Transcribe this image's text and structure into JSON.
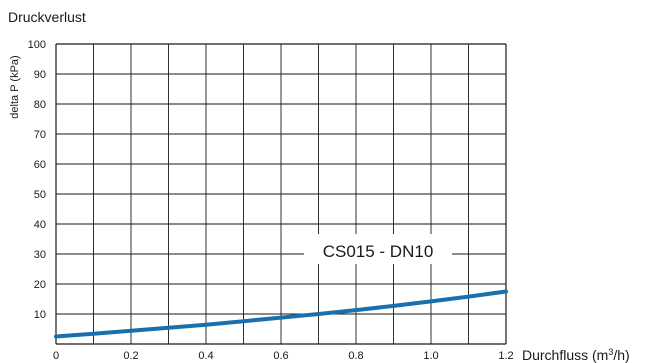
{
  "chart_data": {
    "type": "line",
    "title": "Druckverlust",
    "ylabel": "delta  P (kPa)",
    "xlabel": "Durchfluss (m³/h)",
    "xlim": [
      0,
      1.2
    ],
    "ylim": [
      0,
      100
    ],
    "grid": true,
    "x_ticks": [
      "0",
      "0.2",
      "0.4",
      "0.6",
      "0.8",
      "1.0",
      "1.2"
    ],
    "y_ticks": [
      "10",
      "20",
      "30",
      "40",
      "50",
      "60",
      "70",
      "80",
      "90",
      "100"
    ],
    "series": [
      {
        "name": "CS015 - DN10",
        "color": "#1a6fae",
        "x": [
          0,
          0.1,
          0.2,
          0.3,
          0.4,
          0.5,
          0.6,
          0.7,
          0.8,
          0.9,
          1.0,
          1.1,
          1.2
        ],
        "y": [
          2.5,
          3.4,
          4.4,
          5.4,
          6.4,
          7.6,
          8.8,
          10.0,
          11.3,
          12.7,
          14.2,
          15.8,
          17.5
        ]
      }
    ]
  }
}
